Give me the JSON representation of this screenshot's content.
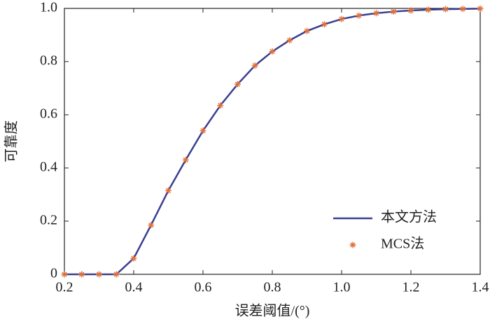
{
  "chart_data": {
    "type": "line",
    "xlabel": "误差阈值/(°)",
    "ylabel": "可靠度",
    "x": [
      0.2,
      0.25,
      0.3,
      0.35,
      0.4,
      0.45,
      0.5,
      0.55,
      0.6,
      0.65,
      0.7,
      0.75,
      0.8,
      0.85,
      0.9,
      0.95,
      1.0,
      1.05,
      1.1,
      1.15,
      1.2,
      1.25,
      1.3,
      1.35,
      1.4
    ],
    "series": [
      {
        "name": "本文方法",
        "color": "#3a3f8f",
        "style": "line",
        "values": [
          0,
          0,
          0,
          0,
          0.06,
          0.185,
          0.315,
          0.43,
          0.54,
          0.635,
          0.715,
          0.785,
          0.838,
          0.88,
          0.915,
          0.94,
          0.96,
          0.973,
          0.982,
          0.988,
          0.992,
          0.995,
          0.997,
          0.998,
          0.999
        ]
      },
      {
        "name": "MCS法",
        "color": "#e0703a",
        "style": "marker",
        "values": [
          0,
          0,
          0,
          0,
          0.06,
          0.185,
          0.315,
          0.43,
          0.54,
          0.635,
          0.715,
          0.785,
          0.838,
          0.88,
          0.915,
          0.94,
          0.96,
          0.973,
          0.982,
          0.988,
          0.992,
          0.995,
          0.997,
          0.998,
          0.999
        ]
      }
    ],
    "xlim": [
      0.2,
      1.4
    ],
    "xticks": [
      0.2,
      0.4,
      0.6,
      0.8,
      {
        "value": 1,
        "label": "1.0"
      },
      1.2,
      1.4
    ],
    "ylim": [
      0,
      1
    ],
    "yticks": [
      0,
      0.2,
      0.4,
      0.6,
      0.8,
      {
        "value": 1,
        "label": "1.0"
      }
    ],
    "legend": "lower right"
  }
}
